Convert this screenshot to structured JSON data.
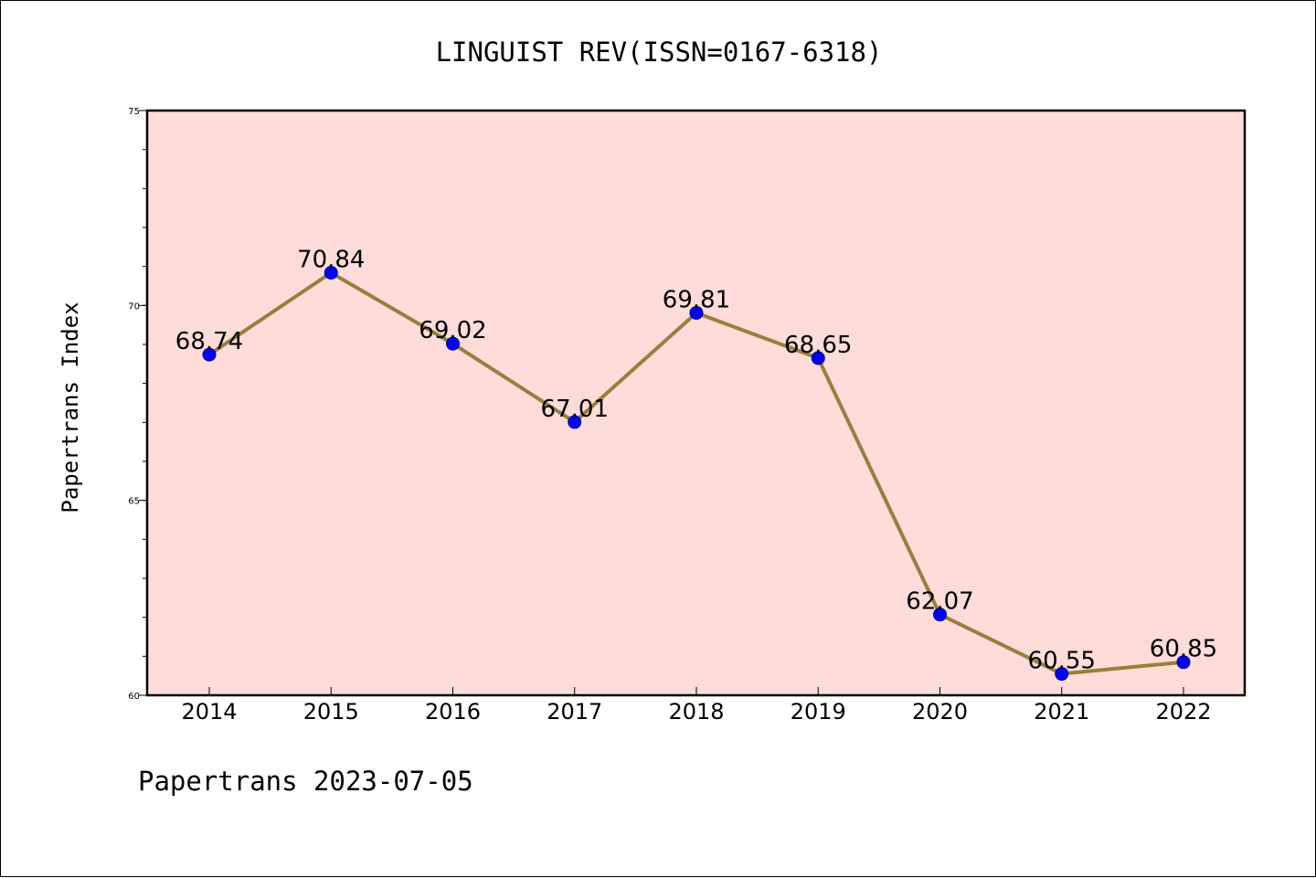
{
  "colors": {
    "plot_background": "#fddcd9",
    "line": "#96803c",
    "marker": "#0000ff",
    "marker_edge": "#000080",
    "axis": "#000000"
  },
  "chart_data": {
    "type": "line",
    "title": "LINGUIST REV(ISSN=0167-6318)",
    "xlabel": "",
    "ylabel": "Papertrans Index",
    "footer": "Papertrans 2023-07-05",
    "categories": [
      "2014",
      "2015",
      "2016",
      "2017",
      "2018",
      "2019",
      "2020",
      "2021",
      "2022"
    ],
    "series": [
      {
        "values": [
          68.74,
          70.84,
          69.02,
          67.01,
          69.81,
          68.65,
          62.07,
          60.55,
          60.85
        ]
      }
    ],
    "data_labels": [
      "68.74",
      "70.84",
      "69.02",
      "67.01",
      "69.81",
      "68.65",
      "62.07",
      "60.55",
      "60.85"
    ],
    "ylim": [
      60,
      75
    ],
    "y_major_ticks": [
      60,
      65,
      70,
      75
    ],
    "y_tick_labels": [
      "60",
      "65",
      "70",
      "75"
    ],
    "y_minor_step": 1,
    "grid": false,
    "legend": "none"
  }
}
